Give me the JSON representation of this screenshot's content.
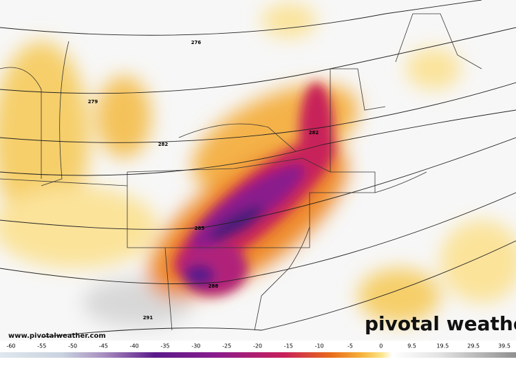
{
  "map": {
    "contour_labels": [
      "276",
      "279",
      "282",
      "282",
      "285",
      "288",
      "291"
    ],
    "brand": "pivotal weather",
    "website": "www.pivotalweather.com",
    "colorbar_labels": [
      "-60",
      "-55",
      "-50",
      "-45",
      "-40",
      "-35",
      "-30",
      "-25",
      "-20",
      "-15",
      "-10",
      "-5",
      "0",
      "9.5",
      "19.5",
      "29.5",
      "39.5"
    ]
  }
}
